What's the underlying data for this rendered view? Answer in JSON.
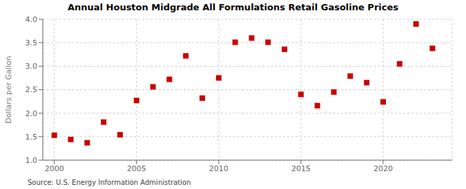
{
  "chart_data": {
    "type": "scatter",
    "title": "Annual Houston Midgrade All Formulations Retail Gasoline Prices",
    "ylabel": "Dollars per Gallon",
    "annotations": [
      "Source: U.S. Energy Information Administration"
    ],
    "x": [
      2000,
      2001,
      2002,
      2003,
      2004,
      2005,
      2006,
      2007,
      2008,
      2009,
      2010,
      2011,
      2012,
      2013,
      2014,
      2015,
      2016,
      2017,
      2018,
      2019,
      2020,
      2021,
      2022,
      2023
    ],
    "values": [
      1.53,
      1.44,
      1.37,
      1.81,
      1.54,
      2.27,
      2.56,
      2.72,
      3.22,
      2.32,
      2.75,
      3.51,
      3.6,
      3.51,
      3.36,
      2.4,
      2.16,
      2.45,
      2.79,
      2.65,
      2.24,
      3.05,
      3.9,
      3.38
    ],
    "color": "#cc0000",
    "marker": "square",
    "xlim": [
      1999.3,
      2024.2
    ],
    "ylim": [
      1.0,
      4.0
    ],
    "xticks": [
      2000,
      2005,
      2010,
      2015,
      2020
    ],
    "yticks": [
      {
        "value": 1.0,
        "label": "1.0"
      },
      1.5,
      {
        "value": 2.0,
        "label": "2.0"
      },
      2.5,
      {
        "value": 3.0,
        "label": "3.0"
      },
      3.5,
      {
        "value": 4.0,
        "label": "4.0"
      }
    ],
    "grid": true
  }
}
